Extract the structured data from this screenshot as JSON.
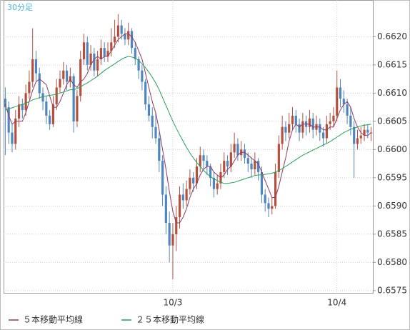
{
  "chart_data": {
    "type": "candlestick",
    "title": "30分足",
    "categories": [
      null,
      null,
      null,
      null,
      null,
      null,
      null,
      null,
      null,
      null,
      null,
      null,
      null,
      null,
      null,
      null,
      null,
      null,
      null,
      null,
      null,
      null,
      null,
      null,
      null,
      null,
      null,
      null,
      null,
      null,
      null,
      null,
      null,
      null,
      null,
      null,
      null,
      null,
      null,
      null,
      null,
      null,
      null,
      null,
      null,
      null,
      null,
      null,
      null,
      "10/3",
      null,
      null,
      null,
      null,
      null,
      null,
      null,
      null,
      null,
      null,
      null,
      null,
      null,
      null,
      null,
      null,
      null,
      null,
      null,
      null,
      null,
      null,
      null,
      null,
      null,
      null,
      null,
      null,
      null,
      null,
      null,
      null,
      null,
      null,
      null,
      null,
      null,
      null,
      null,
      null,
      null,
      null,
      null,
      null,
      null,
      null,
      null,
      "10/4",
      null,
      null,
      null,
      null,
      null,
      null,
      null,
      null,
      null,
      null
    ],
    "ohlc": [
      [
        0.6609,
        0.6611,
        0.6599,
        0.66075
      ],
      [
        0.66075,
        0.66085,
        0.6601,
        0.6603
      ],
      [
        0.6603,
        0.66045,
        0.65995,
        0.6601
      ],
      [
        0.6601,
        0.6607,
        0.66,
        0.66055
      ],
      [
        0.66055,
        0.66095,
        0.6604,
        0.6608
      ],
      [
        0.6608,
        0.6609,
        0.66055,
        0.6607
      ],
      [
        0.6607,
        0.66115,
        0.6606,
        0.661
      ],
      [
        0.661,
        0.6614,
        0.6609,
        0.6612
      ],
      [
        0.6612,
        0.66215,
        0.6611,
        0.6616
      ],
      [
        0.6616,
        0.66175,
        0.6612,
        0.66135
      ],
      [
        0.66135,
        0.66145,
        0.6609,
        0.661
      ],
      [
        0.661,
        0.6611,
        0.6607,
        0.66085
      ],
      [
        0.66085,
        0.66095,
        0.66045,
        0.6606
      ],
      [
        0.6606,
        0.6607,
        0.66035,
        0.66045
      ],
      [
        0.66045,
        0.66095,
        0.6604,
        0.6608
      ],
      [
        0.6608,
        0.66125,
        0.6607,
        0.6611
      ],
      [
        0.6611,
        0.6614,
        0.661,
        0.66125
      ],
      [
        0.66125,
        0.66155,
        0.66115,
        0.6614
      ],
      [
        0.6614,
        0.6615,
        0.66105,
        0.6612
      ],
      [
        0.6612,
        0.66145,
        0.6611,
        0.6613
      ],
      [
        0.6613,
        0.66135,
        0.6603,
        0.6605
      ],
      [
        0.6605,
        0.66105,
        0.6604,
        0.66095
      ],
      [
        0.66095,
        0.66175,
        0.66085,
        0.6616
      ],
      [
        0.6616,
        0.66205,
        0.6615,
        0.6619
      ],
      [
        0.6619,
        0.662,
        0.6614,
        0.6615
      ],
      [
        0.6615,
        0.66185,
        0.6614,
        0.6617
      ],
      [
        0.6617,
        0.6618,
        0.6613,
        0.6614
      ],
      [
        0.6614,
        0.66175,
        0.6613,
        0.6616
      ],
      [
        0.6616,
        0.66195,
        0.6615,
        0.6618
      ],
      [
        0.6618,
        0.6619,
        0.66155,
        0.66165
      ],
      [
        0.66165,
        0.6619,
        0.66155,
        0.66175
      ],
      [
        0.66175,
        0.66215,
        0.66165,
        0.6619
      ],
      [
        0.6619,
        0.6623,
        0.6618,
        0.662
      ],
      [
        0.662,
        0.6624,
        0.6619,
        0.6622
      ],
      [
        0.6622,
        0.6623,
        0.66195,
        0.66205
      ],
      [
        0.66205,
        0.66215,
        0.66185,
        0.66195
      ],
      [
        0.66195,
        0.66225,
        0.66185,
        0.6621
      ],
      [
        0.6621,
        0.66215,
        0.6617,
        0.6618
      ],
      [
        0.6618,
        0.6619,
        0.6615,
        0.6616
      ],
      [
        0.6616,
        0.66165,
        0.66125,
        0.6614
      ],
      [
        0.6614,
        0.6615,
        0.66105,
        0.6612
      ],
      [
        0.6612,
        0.66125,
        0.6607,
        0.6608
      ],
      [
        0.6608,
        0.66095,
        0.6605,
        0.6606
      ],
      [
        0.6606,
        0.66075,
        0.6602,
        0.6604
      ],
      [
        0.6604,
        0.66065,
        0.6601,
        0.6602
      ],
      [
        0.6602,
        0.6603,
        0.6596,
        0.6598
      ],
      [
        0.6598,
        0.6599,
        0.659,
        0.6592
      ],
      [
        0.6592,
        0.65935,
        0.6585,
        0.6587
      ],
      [
        0.6587,
        0.6589,
        0.658,
        0.6583
      ],
      [
        0.6583,
        0.6587,
        0.6577,
        0.6585
      ],
      [
        0.6585,
        0.659,
        0.6582,
        0.6588
      ],
      [
        0.6588,
        0.65935,
        0.6586,
        0.6592
      ],
      [
        0.6592,
        0.6594,
        0.65895,
        0.6591
      ],
      [
        0.6591,
        0.65945,
        0.659,
        0.6593
      ],
      [
        0.6593,
        0.65965,
        0.6592,
        0.6595
      ],
      [
        0.6595,
        0.6596,
        0.65925,
        0.6594
      ],
      [
        0.6594,
        0.65985,
        0.6593,
        0.6597
      ],
      [
        0.6597,
        0.66005,
        0.6596,
        0.6599
      ],
      [
        0.6599,
        0.66,
        0.65965,
        0.6598
      ],
      [
        0.6598,
        0.6599,
        0.65955,
        0.6597
      ],
      [
        0.6597,
        0.65975,
        0.65935,
        0.6595
      ],
      [
        0.6595,
        0.6596,
        0.65915,
        0.6593
      ],
      [
        0.6593,
        0.65955,
        0.6592,
        0.6594
      ],
      [
        0.6594,
        0.65975,
        0.6593,
        0.6596
      ],
      [
        0.6596,
        0.65995,
        0.6595,
        0.6598
      ],
      [
        0.6598,
        0.6599,
        0.65955,
        0.6597
      ],
      [
        0.6597,
        0.6601,
        0.6596,
        0.65995
      ],
      [
        0.65995,
        0.6603,
        0.65985,
        0.6601
      ],
      [
        0.6601,
        0.6602,
        0.6598,
        0.6599
      ],
      [
        0.6599,
        0.66015,
        0.6598,
        0.66
      ],
      [
        0.66,
        0.6601,
        0.65975,
        0.65985
      ],
      [
        0.65985,
        0.65995,
        0.6596,
        0.65975
      ],
      [
        0.65975,
        0.65985,
        0.6595,
        0.65965
      ],
      [
        0.65965,
        0.65995,
        0.65955,
        0.6598
      ],
      [
        0.6598,
        0.65985,
        0.65945,
        0.6596
      ],
      [
        0.6596,
        0.6597,
        0.65905,
        0.6592
      ],
      [
        0.6592,
        0.6593,
        0.6589,
        0.65905
      ],
      [
        0.65905,
        0.65915,
        0.6588,
        0.65895
      ],
      [
        0.65895,
        0.65915,
        0.65885,
        0.659
      ],
      [
        0.659,
        0.65975,
        0.65895,
        0.6596
      ],
      [
        0.6596,
        0.66025,
        0.6595,
        0.6601
      ],
      [
        0.6601,
        0.6606,
        0.66,
        0.6604
      ],
      [
        0.6604,
        0.6605,
        0.66015,
        0.6603
      ],
      [
        0.6603,
        0.66065,
        0.6602,
        0.66045
      ],
      [
        0.66045,
        0.66075,
        0.66035,
        0.6606
      ],
      [
        0.6606,
        0.6607,
        0.6603,
        0.66045
      ],
      [
        0.66045,
        0.66055,
        0.66015,
        0.6603
      ],
      [
        0.6603,
        0.66065,
        0.6602,
        0.6605
      ],
      [
        0.6605,
        0.6606,
        0.66025,
        0.6604
      ],
      [
        0.6604,
        0.6607,
        0.6603,
        0.66055
      ],
      [
        0.66055,
        0.66065,
        0.6602,
        0.66035
      ],
      [
        0.66035,
        0.6606,
        0.66025,
        0.66045
      ],
      [
        0.66045,
        0.66055,
        0.66015,
        0.6603
      ],
      [
        0.6603,
        0.6604,
        0.66005,
        0.6602
      ],
      [
        0.6602,
        0.6606,
        0.6601,
        0.66045
      ],
      [
        0.66045,
        0.66065,
        0.66035,
        0.6605
      ],
      [
        0.6605,
        0.66075,
        0.6604,
        0.6606
      ],
      [
        0.6606,
        0.6614,
        0.6605,
        0.6611
      ],
      [
        0.6611,
        0.66125,
        0.66075,
        0.6609
      ],
      [
        0.6609,
        0.66105,
        0.66065,
        0.6608
      ],
      [
        0.6608,
        0.6609,
        0.66045,
        0.6606
      ],
      [
        0.6606,
        0.66075,
        0.66025,
        0.6604
      ],
      [
        0.6604,
        0.6605,
        0.6595,
        0.6601
      ],
      [
        0.6601,
        0.66035,
        0.66,
        0.6602
      ],
      [
        0.6602,
        0.6604,
        0.6601,
        0.66025
      ],
      [
        0.66025,
        0.66045,
        0.66015,
        0.66035
      ],
      [
        0.66035,
        0.66045,
        0.6602,
        0.6603
      ],
      [
        0.6603,
        0.6604,
        0.66015,
        0.6603
      ]
    ],
    "up_color": "#b5503f",
    "down_color": "#4f86bd",
    "series": [
      {
        "name": "５本移動平均線",
        "color": "#8e3b63",
        "values": [
          0.6608,
          0.6606,
          0.66045,
          0.6605,
          0.6605,
          0.6605,
          0.66065,
          0.66085,
          0.66105,
          0.6612,
          0.66125,
          0.6612,
          0.66115,
          0.66095,
          0.66075,
          0.66075,
          0.66085,
          0.661,
          0.66115,
          0.66125,
          0.66115,
          0.6611,
          0.6612,
          0.66125,
          0.66135,
          0.6615,
          0.6616,
          0.66165,
          0.6616,
          0.66165,
          0.66165,
          0.66175,
          0.66185,
          0.66195,
          0.662,
          0.66205,
          0.66205,
          0.662,
          0.6619,
          0.66175,
          0.6616,
          0.66135,
          0.6611,
          0.66085,
          0.66065,
          0.66035,
          0.66,
          0.65965,
          0.65925,
          0.6589,
          0.6587,
          0.6587,
          0.6588,
          0.65895,
          0.65915,
          0.6593,
          0.6594,
          0.65955,
          0.65965,
          0.6597,
          0.6597,
          0.6596,
          0.65955,
          0.6595,
          0.65955,
          0.65965,
          0.6597,
          0.6598,
          0.6599,
          0.65995,
          0.65995,
          0.6599,
          0.65985,
          0.6598,
          0.65975,
          0.6596,
          0.65945,
          0.6593,
          0.65915,
          0.65915,
          0.65935,
          0.6596,
          0.65985,
          0.66015,
          0.66035,
          0.66045,
          0.6604,
          0.66045,
          0.66045,
          0.66045,
          0.6604,
          0.6604,
          0.6604,
          0.66035,
          0.66035,
          0.6604,
          0.6604,
          0.66055,
          0.6607,
          0.6608,
          0.66085,
          0.66075,
          0.66055,
          0.6604,
          0.6603,
          0.66025,
          0.66025,
          0.6603
        ]
      },
      {
        "name": "２５本移動平均線",
        "color": "#2e9e5b",
        "values": [
          0.6607,
          0.66072,
          0.66074,
          0.66076,
          0.66078,
          0.6608,
          0.66082,
          0.66085,
          0.66088,
          0.6609,
          0.66092,
          0.66094,
          0.66095,
          0.66096,
          0.66097,
          0.66098,
          0.661,
          0.66102,
          0.66104,
          0.66106,
          0.66106,
          0.66108,
          0.66111,
          0.66115,
          0.66118,
          0.66122,
          0.66126,
          0.6613,
          0.66135,
          0.6614,
          0.66144,
          0.66148,
          0.66152,
          0.66156,
          0.6616,
          0.66163,
          0.66165,
          0.66164,
          0.66162,
          0.66158,
          0.66152,
          0.66145,
          0.66137,
          0.66128,
          0.66118,
          0.66106,
          0.66092,
          0.66078,
          0.66064,
          0.6605,
          0.66038,
          0.66026,
          0.66015,
          0.66004,
          0.65994,
          0.65985,
          0.65977,
          0.6597,
          0.65963,
          0.65957,
          0.65952,
          0.65948,
          0.65945,
          0.65942,
          0.6594,
          0.6594,
          0.65941,
          0.65942,
          0.65944,
          0.65946,
          0.65948,
          0.6595,
          0.65952,
          0.65954,
          0.65955,
          0.65955,
          0.65956,
          0.65957,
          0.65958,
          0.6596,
          0.65963,
          0.65966,
          0.6597,
          0.65974,
          0.65978,
          0.65982,
          0.65986,
          0.6599,
          0.65993,
          0.65996,
          0.65999,
          0.66002,
          0.66005,
          0.66008,
          0.66011,
          0.66014,
          0.66018,
          0.66022,
          0.66026,
          0.6603,
          0.66033,
          0.66036,
          0.66038,
          0.6604,
          0.66042,
          0.66043,
          0.66044,
          0.66045
        ]
      }
    ],
    "ylim": [
      0.65746,
      0.66265
    ],
    "yticks": [
      0.6575,
      {
        "value": 0.658,
        "label": "0.6580"
      },
      0.6585,
      {
        "value": 0.659,
        "label": "0.6590"
      },
      0.6595,
      {
        "value": 0.66,
        "label": "0.6600"
      },
      0.6605,
      {
        "value": 0.661,
        "label": "0.6610"
      },
      0.6615,
      {
        "value": 0.662,
        "label": "0.6620"
      }
    ],
    "grid": true,
    "legend": "bottom-left"
  }
}
